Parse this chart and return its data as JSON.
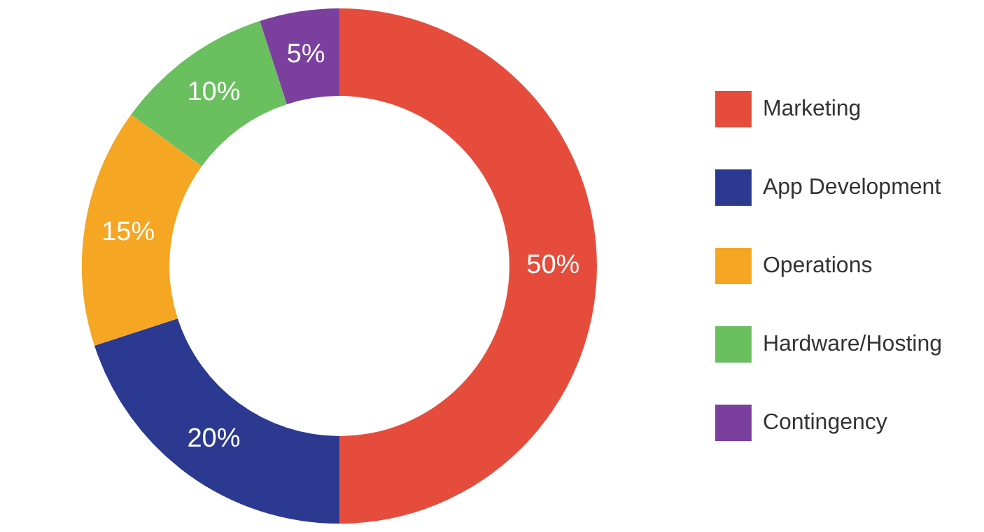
{
  "chart_data": {
    "type": "donut",
    "categories": [
      "Marketing",
      "App Development",
      "Operations",
      "Hardware/Hosting",
      "Contingency"
    ],
    "values": [
      50,
      20,
      15,
      10,
      5
    ],
    "colors": [
      "#e54c3c",
      "#2b3990",
      "#f5a623",
      "#6abf5e",
      "#7b3f9e"
    ],
    "value_labels": [
      "50%",
      "20%",
      "15%",
      "10%",
      "5%"
    ],
    "legend": "right"
  }
}
